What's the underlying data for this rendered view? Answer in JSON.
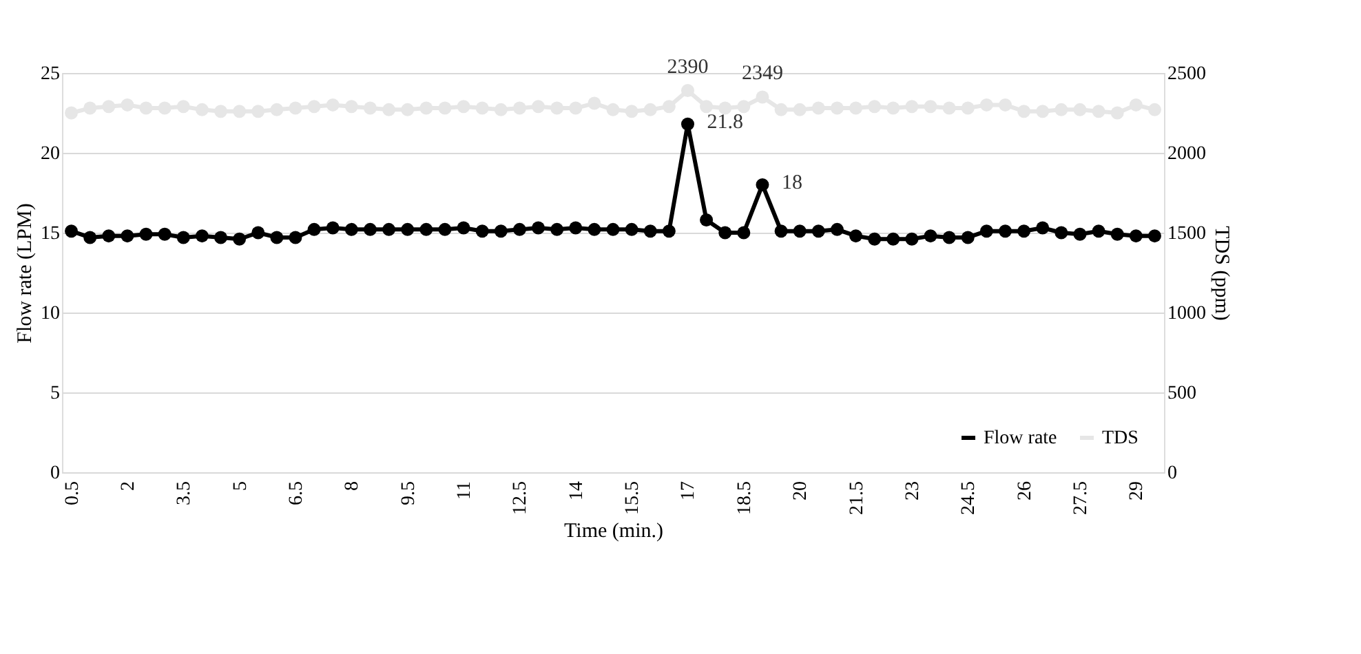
{
  "chart_data": {
    "type": "line",
    "xlabel": "Time (min.)",
    "ylabel": "Flow rate (LPM)",
    "y2label": "TDS (ppm)",
    "categories": [
      "0.5",
      null,
      null,
      "2",
      null,
      null,
      "3.5",
      null,
      null,
      "5",
      null,
      null,
      "6.5",
      null,
      null,
      "8",
      null,
      null,
      "9.5",
      null,
      null,
      "11",
      null,
      null,
      "12.5",
      null,
      null,
      "14",
      null,
      null,
      "15.5",
      null,
      null,
      "17",
      null,
      null,
      "18.5",
      null,
      null,
      "20",
      null,
      null,
      "21.5",
      null,
      null,
      "23",
      null,
      null,
      "24.5",
      null,
      null,
      "26",
      null,
      null,
      "27.5",
      null,
      null,
      "29",
      null
    ],
    "series": [
      {
        "name": "Flow rate",
        "color": "#000000",
        "values": [
          15.1,
          14.7,
          14.8,
          14.8,
          14.9,
          14.9,
          14.7,
          14.8,
          14.7,
          14.6,
          15.0,
          14.7,
          14.7,
          15.2,
          15.3,
          15.2,
          15.2,
          15.2,
          15.2,
          15.2,
          15.2,
          15.3,
          15.1,
          15.1,
          15.2,
          15.3,
          15.2,
          15.3,
          15.2,
          15.2,
          15.2,
          15.1,
          15.1,
          21.8,
          15.8,
          15.0,
          15.0,
          18,
          15.1,
          15.1,
          15.1,
          15.2,
          14.8,
          14.6,
          14.6,
          14.6,
          14.8,
          14.7,
          14.7,
          15.1,
          15.1,
          15.1,
          15.3,
          15.0,
          14.9,
          15.1,
          14.9,
          14.8,
          14.8
        ],
        "value_labels": [
          null,
          null,
          null,
          null,
          null,
          null,
          null,
          null,
          null,
          null,
          null,
          null,
          null,
          null,
          null,
          null,
          null,
          null,
          null,
          null,
          null,
          null,
          null,
          null,
          null,
          null,
          null,
          null,
          null,
          null,
          null,
          null,
          null,
          "21.8",
          null,
          null,
          null,
          "18",
          null,
          null,
          null,
          null,
          null,
          null,
          null,
          null,
          null,
          null,
          null,
          null,
          null,
          null,
          null,
          null,
          null,
          null,
          null,
          null,
          null
        ]
      },
      {
        "name": "TDS",
        "color": "#e6e6e6",
        "axis": "y2",
        "values": [
          2250,
          2280,
          2290,
          2300,
          2280,
          2280,
          2290,
          2270,
          2260,
          2260,
          2260,
          2270,
          2280,
          2290,
          2300,
          2290,
          2280,
          2270,
          2270,
          2280,
          2280,
          2290,
          2280,
          2270,
          2280,
          2290,
          2280,
          2280,
          2310,
          2270,
          2260,
          2270,
          2290,
          2390,
          2290,
          2280,
          2290,
          2349,
          2270,
          2270,
          2280,
          2280,
          2280,
          2290,
          2280,
          2290,
          2290,
          2280,
          2280,
          2300,
          2300,
          2260,
          2260,
          2270,
          2270,
          2260,
          2250,
          2300,
          2270
        ],
        "value_labels": [
          null,
          null,
          null,
          null,
          null,
          null,
          null,
          null,
          null,
          null,
          null,
          null,
          null,
          null,
          null,
          null,
          null,
          null,
          null,
          null,
          null,
          null,
          null,
          null,
          null,
          null,
          null,
          null,
          null,
          null,
          null,
          null,
          null,
          "2390",
          null,
          null,
          null,
          "2349",
          null,
          null,
          null,
          null,
          null,
          null,
          null,
          null,
          null,
          null,
          null,
          null,
          null,
          null,
          null,
          null,
          null,
          null,
          null,
          null,
          null
        ]
      }
    ],
    "ylim": [
      0,
      25
    ],
    "yticks": [
      0,
      5,
      10,
      15,
      20,
      25
    ],
    "y2lim": [
      0,
      2500
    ],
    "y2ticks": [
      0,
      500,
      1000,
      1500,
      2000,
      2500
    ],
    "grid": "y",
    "legend": "bottom right",
    "marker": "circle",
    "line_style": "solid"
  }
}
